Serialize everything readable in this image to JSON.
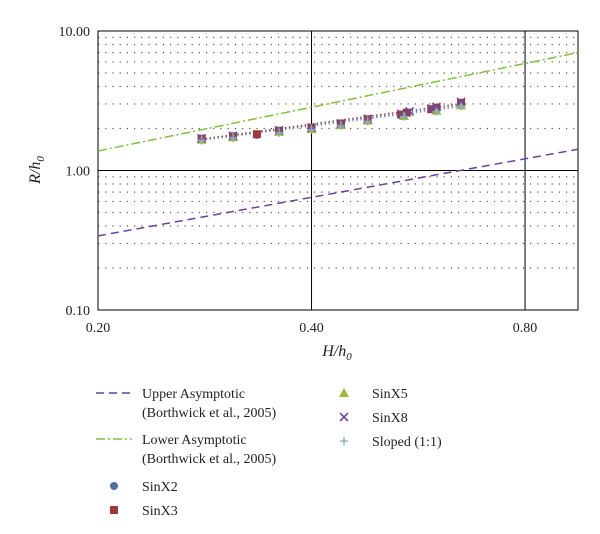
{
  "chart_data": {
    "type": "scatter",
    "title": "",
    "xlabel": "H/h",
    "xlabel_sub": "0",
    "ylabel": "R/h",
    "ylabel_sub": "0",
    "x_scale": "log",
    "y_scale": "log",
    "xlim": [
      0.2,
      0.95
    ],
    "ylim": [
      0.1,
      10.0
    ],
    "x_ticks": [
      0.2,
      0.4,
      0.8
    ],
    "x_tick_labels": [
      "0.20",
      "0.40",
      "0.80"
    ],
    "y_ticks": [
      0.1,
      1.0,
      10.0
    ],
    "y_tick_labels": [
      "0.10",
      "1.00",
      "10.00"
    ],
    "grid": "major solid, minor dotted",
    "legend_position": "bottom",
    "series": [
      {
        "name": "Upper Asymptotic (Borthwick et al., 2005)",
        "kind": "line",
        "style": "dashed",
        "color": "#6a3fa0",
        "x": [
          0.2,
          0.95
        ],
        "y": [
          0.34,
          1.42
        ]
      },
      {
        "name": "Lower Asymptotic (Borthwick et al., 2005)",
        "kind": "line",
        "style": "dashdot",
        "color": "#7cc23a",
        "x": [
          0.2,
          0.95
        ],
        "y": [
          1.38,
          7.0
        ]
      },
      {
        "name": "SinX2",
        "kind": "scatter",
        "marker": "circle",
        "color": "#4a6fa5",
        "x": [
          0.28,
          0.31,
          0.335,
          0.36,
          0.4,
          0.44,
          0.48,
          0.54,
          0.6,
          0.65
        ],
        "y": [
          1.67,
          1.74,
          1.8,
          1.9,
          2.0,
          2.13,
          2.3,
          2.48,
          2.7,
          2.95
        ]
      },
      {
        "name": "SinX3",
        "kind": "scatter",
        "marker": "square",
        "color": "#a0383a",
        "x": [
          0.28,
          0.31,
          0.335,
          0.36,
          0.4,
          0.44,
          0.48,
          0.535,
          0.545,
          0.59,
          0.6,
          0.65
        ],
        "y": [
          1.69,
          1.76,
          1.82,
          1.93,
          2.02,
          2.17,
          2.33,
          2.52,
          2.6,
          2.75,
          2.82,
          3.06
        ]
      },
      {
        "name": "SinX5",
        "kind": "scatter",
        "marker": "triangle",
        "color": "#9bbb3b",
        "x": [
          0.28,
          0.31,
          0.36,
          0.4,
          0.44,
          0.48,
          0.54,
          0.6,
          0.65
        ],
        "y": [
          1.66,
          1.73,
          1.89,
          1.98,
          2.12,
          2.28,
          2.46,
          2.68,
          2.93
        ]
      },
      {
        "name": "SinX8",
        "kind": "scatter",
        "marker": "x",
        "color": "#6a4a9c",
        "x": [
          0.28,
          0.31,
          0.36,
          0.4,
          0.44,
          0.48,
          0.535,
          0.55,
          0.59,
          0.6,
          0.65
        ],
        "y": [
          1.7,
          1.77,
          1.94,
          2.03,
          2.18,
          2.35,
          2.55,
          2.65,
          2.78,
          2.86,
          3.1
        ]
      },
      {
        "name": "Sloped (1:1)",
        "kind": "scatter",
        "marker": "plus",
        "color": "#8fa8d0",
        "x": [
          0.28,
          0.31,
          0.36,
          0.4,
          0.44,
          0.48,
          0.54,
          0.6,
          0.65
        ],
        "y": [
          1.64,
          1.71,
          1.86,
          1.96,
          2.09,
          2.25,
          2.43,
          2.64,
          2.88
        ]
      }
    ],
    "trend_lines": [
      {
        "series": "SinX2",
        "style": "dotted",
        "color": "#4a6fa5",
        "x": [
          0.28,
          0.65
        ],
        "y": [
          1.66,
          2.93
        ]
      },
      {
        "series": "SinX3",
        "style": "dotted",
        "color": "#a0383a",
        "x": [
          0.28,
          0.65
        ],
        "y": [
          1.68,
          3.02
        ]
      },
      {
        "series": "Sloped (1:1)",
        "style": "dotted",
        "color": "#8fa8d0",
        "x": [
          0.28,
          0.65
        ],
        "y": [
          1.64,
          2.86
        ]
      }
    ]
  },
  "legend": {
    "items": [
      {
        "lines": [
          "Upper Asymptotic",
          "(Borthwick et al., 2005)"
        ],
        "symbol": "dashed",
        "color": "#6a3fa0"
      },
      {
        "lines": [
          "Lower Asymptotic",
          "(Borthwick et al., 2005)"
        ],
        "symbol": "dashdot",
        "color": "#7cc23a"
      },
      {
        "lines": [
          "SinX2"
        ],
        "symbol": "circle",
        "color": "#4a6fa5"
      },
      {
        "lines": [
          "SinX3"
        ],
        "symbol": "square",
        "color": "#a0383a"
      },
      {
        "lines": [
          "SinX5"
        ],
        "symbol": "triangle",
        "color": "#9bbb3b"
      },
      {
        "lines": [
          "SinX8"
        ],
        "symbol": "x",
        "color": "#6a4a9c"
      },
      {
        "lines": [
          "Sloped (1:1)"
        ],
        "symbol": "plus",
        "color": "#8fa8d0"
      }
    ]
  }
}
